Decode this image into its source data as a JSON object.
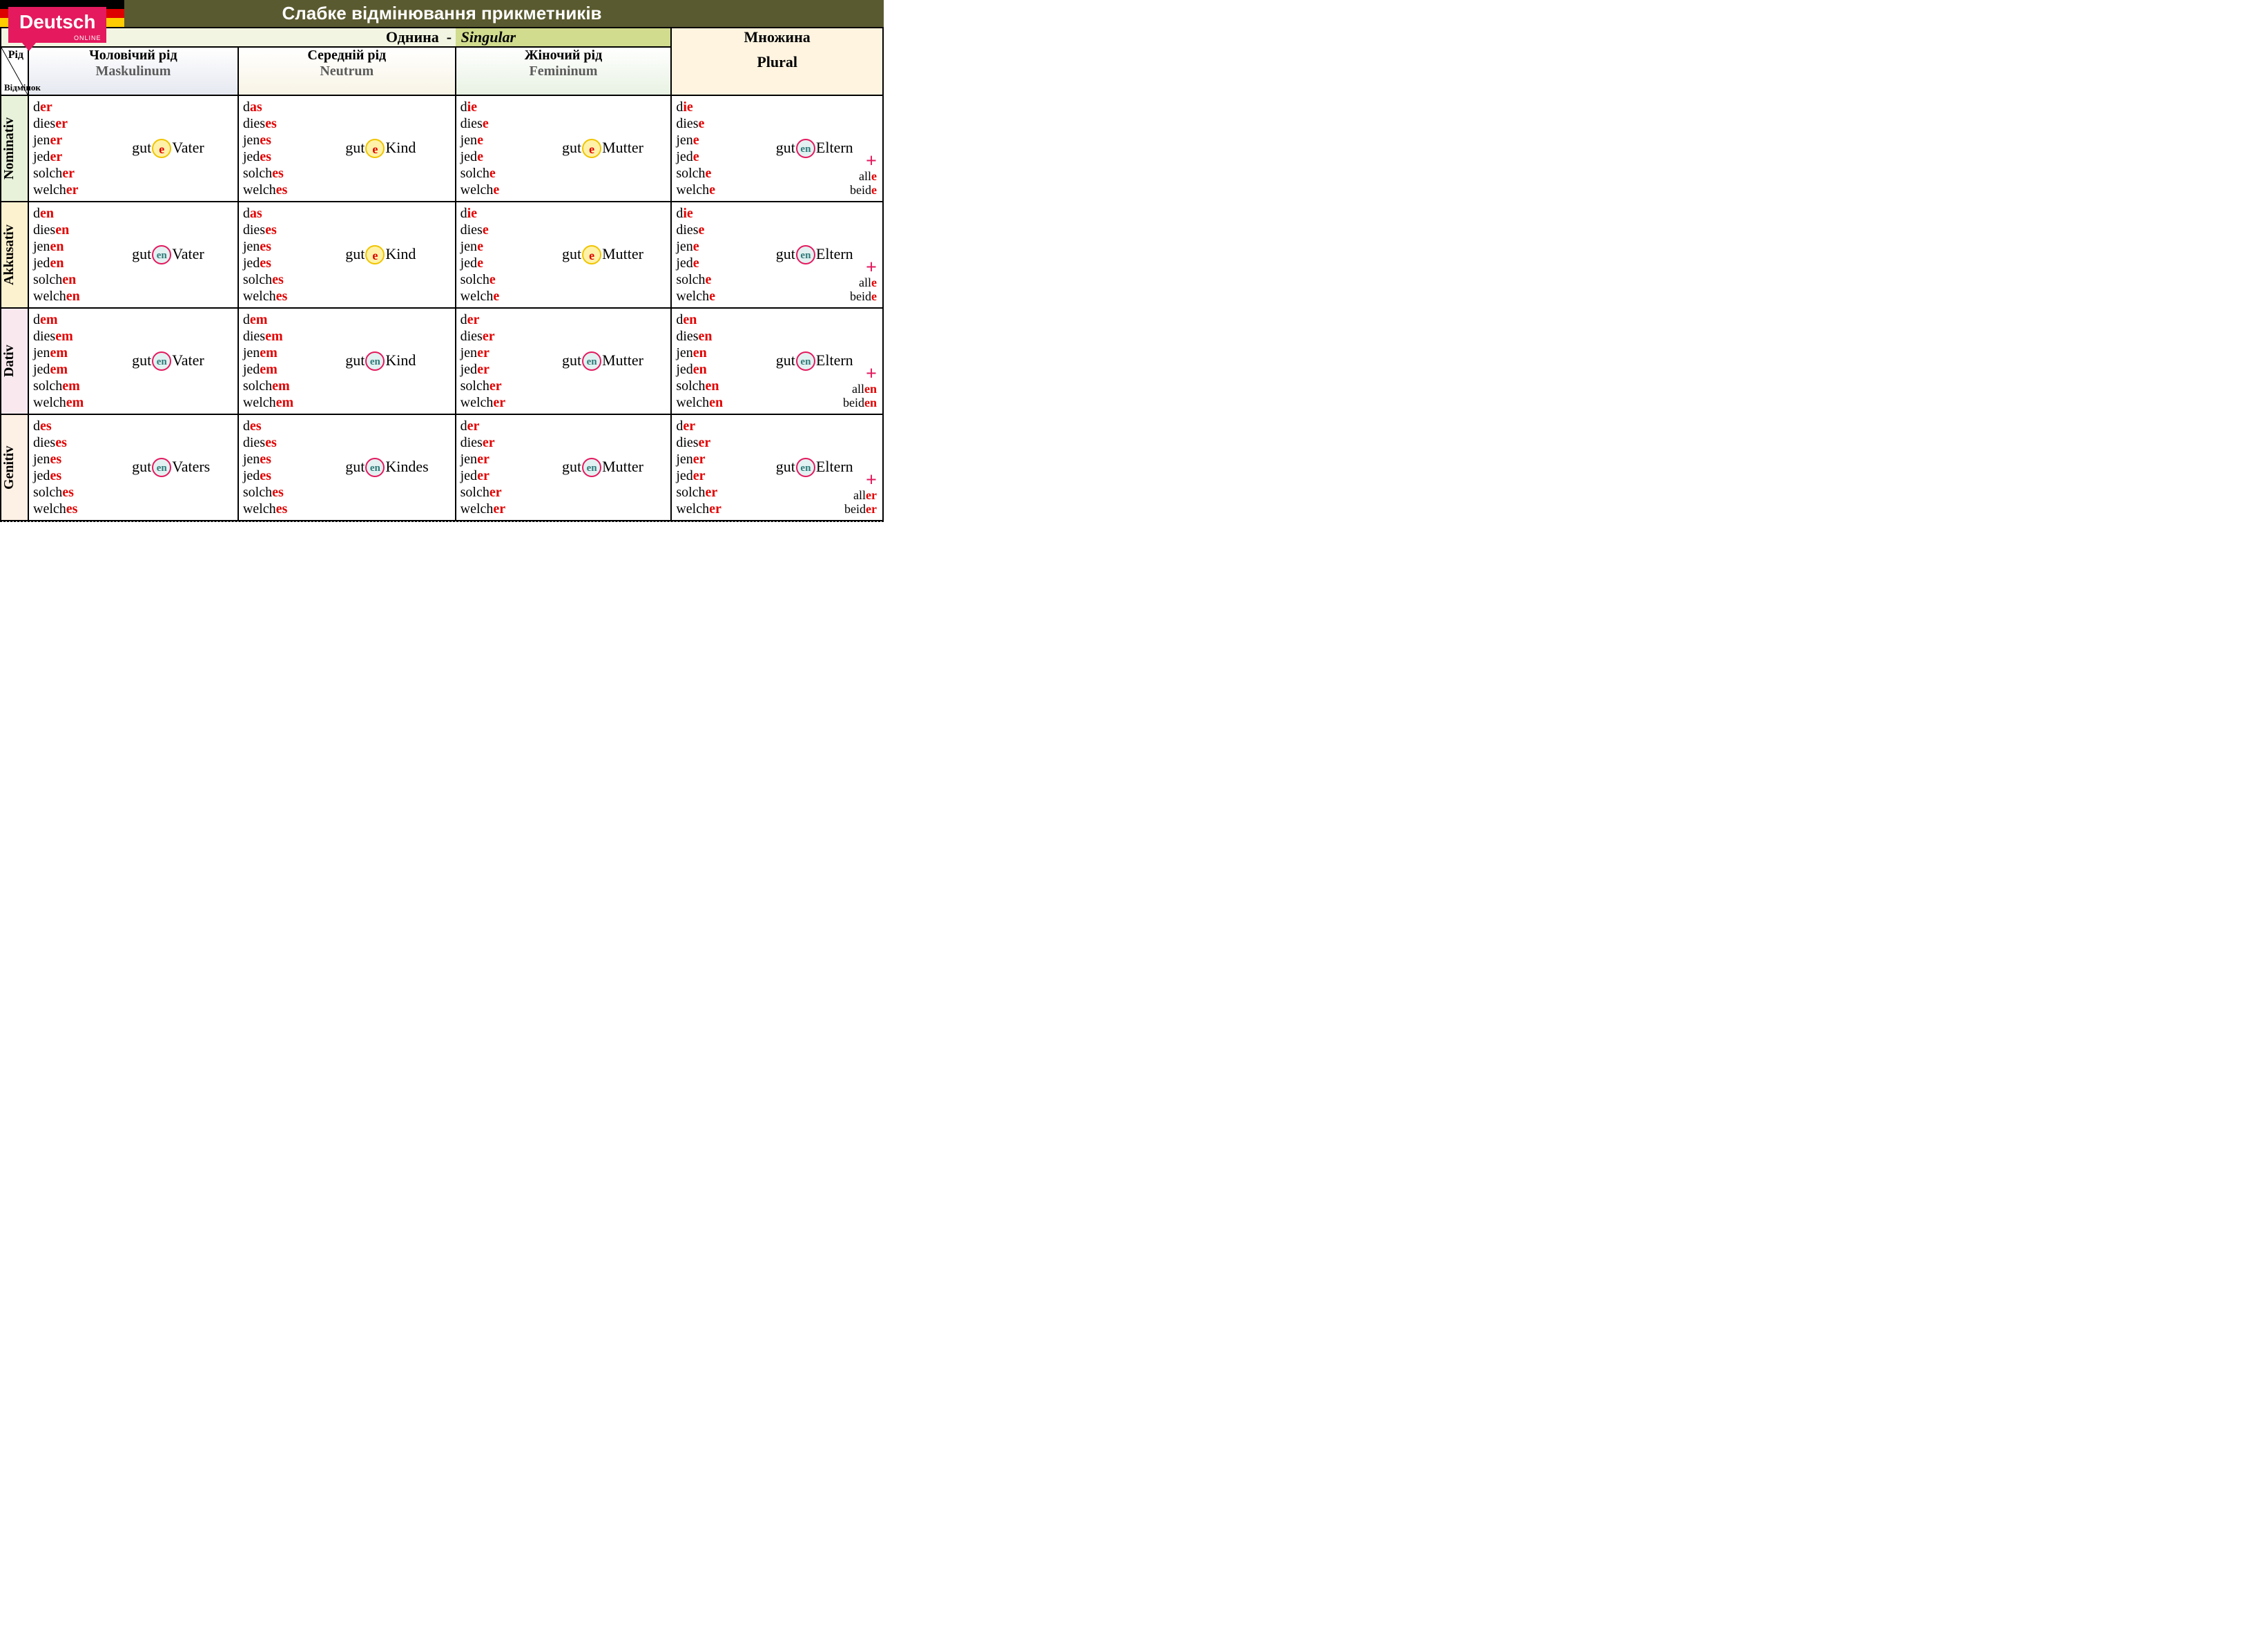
{
  "title": "Слабке відмінювання прикметників",
  "logo": {
    "main": "Deutsch",
    "sub": "ONLINE"
  },
  "singular": {
    "uk": "Однина",
    "dash": "-",
    "de": "Singular"
  },
  "plural": {
    "uk": "Множина",
    "de": "Plural"
  },
  "corner": {
    "rid": "Рід",
    "vid": "Відмінок"
  },
  "genders": {
    "m": {
      "uk": "Чоловічий рід",
      "de": "Maskulinum"
    },
    "n": {
      "uk": "Середній рід",
      "de": "Neutrum"
    },
    "f": {
      "uk": "Жіночий рід",
      "de": "Femininum"
    }
  },
  "cases": {
    "nom": "Nominativ",
    "akk": "Akkusativ",
    "dat": "Dativ",
    "gen": "Genitiv"
  },
  "colors": {
    "title_bg": "#5a5a30",
    "accent_red": "#e30000",
    "logo_bg": "#e4195e",
    "ending_e_bg": "#fff2a8",
    "ending_e_border": "#f0c400",
    "ending_en_bg": "#e2f1f1",
    "ending_en_border": "#e4195e",
    "ending_en_color": "#2f7a7a",
    "nom_bg": "#e8f1d9",
    "akk_bg": "#fdf2cf",
    "dat_bg": "#f9e9ee",
    "gen_bg": "#fdf0e4",
    "sing_left_bg": "#f2f5e1",
    "sing_right_bg": "#d1dc8e",
    "plural_bg": "#fff4e0"
  },
  "typography": {
    "title_fontsize": 26,
    "header_fontsize": 22,
    "cell_fontsize": 20,
    "adj_fontsize": 22
  },
  "columns": [
    "m",
    "n",
    "f",
    "p"
  ],
  "det_stems": [
    "d",
    "dies",
    "jen",
    "jed",
    "solch",
    "welch"
  ],
  "plural_extra_stems": [
    "all",
    "beid"
  ],
  "adj_stem": "gut",
  "nouns": {
    "m": "Vater",
    "n": "Kind",
    "f": "Mutter",
    "p": "Eltern",
    "m_gen": "Vaters",
    "n_gen": "Kindes"
  },
  "table": {
    "nom": {
      "m": {
        "det_ends": [
          "er",
          "er",
          "er",
          "er",
          "er",
          "er"
        ],
        "adj_end": "e",
        "noun": "Vater"
      },
      "n": {
        "det_ends": [
          "as",
          "es",
          "es",
          "es",
          "es",
          "es"
        ],
        "adj_end": "e",
        "noun": "Kind"
      },
      "f": {
        "det_ends": [
          "ie",
          "e",
          "e",
          "e",
          "e",
          "e"
        ],
        "adj_end": "e",
        "noun": "Mutter"
      },
      "p": {
        "det_ends": [
          "ie",
          "e",
          "e",
          "e",
          "e",
          "e"
        ],
        "adj_end": "en",
        "noun": "Eltern",
        "extra_ends": [
          "e",
          "e"
        ]
      }
    },
    "akk": {
      "m": {
        "det_ends": [
          "en",
          "en",
          "en",
          "en",
          "en",
          "en"
        ],
        "adj_end": "en",
        "noun": "Vater"
      },
      "n": {
        "det_ends": [
          "as",
          "es",
          "es",
          "es",
          "es",
          "es"
        ],
        "adj_end": "e",
        "noun": "Kind"
      },
      "f": {
        "det_ends": [
          "ie",
          "e",
          "e",
          "e",
          "e",
          "e"
        ],
        "adj_end": "e",
        "noun": "Mutter"
      },
      "p": {
        "det_ends": [
          "ie",
          "e",
          "e",
          "e",
          "e",
          "e"
        ],
        "adj_end": "en",
        "noun": "Eltern",
        "extra_ends": [
          "e",
          "e"
        ]
      }
    },
    "dat": {
      "m": {
        "det_ends": [
          "em",
          "em",
          "em",
          "em",
          "em",
          "em"
        ],
        "adj_end": "en",
        "noun": "Vater"
      },
      "n": {
        "det_ends": [
          "em",
          "em",
          "em",
          "em",
          "em",
          "em"
        ],
        "adj_end": "en",
        "noun": "Kind"
      },
      "f": {
        "det_ends": [
          "er",
          "er",
          "er",
          "er",
          "er",
          "er"
        ],
        "adj_end": "en",
        "noun": "Mutter"
      },
      "p": {
        "det_ends": [
          "en",
          "en",
          "en",
          "en",
          "en",
          "en"
        ],
        "adj_end": "en",
        "noun": "Eltern",
        "extra_ends": [
          "en",
          "en"
        ]
      }
    },
    "gen": {
      "m": {
        "det_ends": [
          "es",
          "es",
          "es",
          "es",
          "es",
          "es"
        ],
        "adj_end": "en",
        "noun": "Vaters"
      },
      "n": {
        "det_ends": [
          "es",
          "es",
          "es",
          "es",
          "es",
          "es"
        ],
        "adj_end": "en",
        "noun": "Kindes"
      },
      "f": {
        "det_ends": [
          "er",
          "er",
          "er",
          "er",
          "er",
          "er"
        ],
        "adj_end": "en",
        "noun": "Mutter"
      },
      "p": {
        "det_ends": [
          "er",
          "er",
          "er",
          "er",
          "er",
          "er"
        ],
        "adj_end": "en",
        "noun": "Eltern",
        "extra_ends": [
          "er",
          "er"
        ]
      }
    }
  }
}
